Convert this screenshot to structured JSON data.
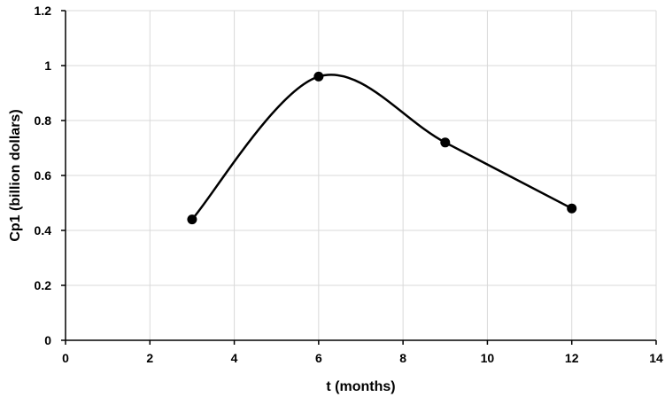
{
  "chart_data": {
    "type": "scatter",
    "title": "",
    "xlabel": "t (months)",
    "ylabel": "Cp1 (billion dollars)",
    "xlim": [
      0,
      14
    ],
    "ylim": [
      0,
      1.2
    ],
    "x_ticks": [
      0,
      2,
      4,
      6,
      8,
      10,
      12,
      14
    ],
    "y_ticks": [
      0,
      0.2,
      0.4,
      0.6,
      0.8,
      1,
      1.2
    ],
    "grid": true,
    "line_style": "smooth",
    "series": [
      {
        "x": [
          3,
          6,
          9,
          12
        ],
        "y": [
          0.44,
          0.96,
          0.72,
          0.48
        ],
        "color": "#000000",
        "marker": "circle"
      }
    ]
  }
}
